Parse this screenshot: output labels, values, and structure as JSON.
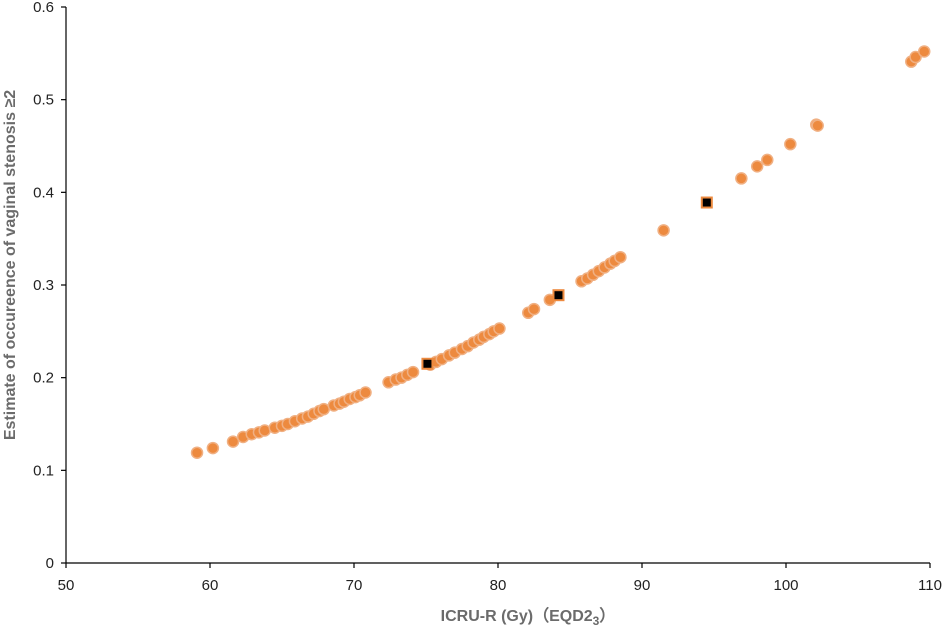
{
  "chart_data": {
    "type": "scatter",
    "xlabel": "ICRU-R (Gy)（EQD2",
    "xlabel_subscript": "3",
    "xlabel_suffix": "）",
    "ylabel": "Estimate of occureence of vaginal stenosis ≥2",
    "xlim": [
      50,
      110
    ],
    "ylim": [
      0,
      0.6
    ],
    "xticks": [
      50,
      60,
      70,
      80,
      90,
      100,
      110
    ],
    "yticks": [
      0,
      0.1,
      0.2,
      0.3,
      0.4,
      0.5,
      0.6
    ],
    "grid": false,
    "colors": {
      "circle": "#ed8a3f",
      "circle_edge": "#f0b083",
      "square": "#000000",
      "square_edge": "#ed8a3f"
    },
    "series": [
      {
        "marker": "circle",
        "points": [
          [
            59.1,
            0.119
          ],
          [
            60.2,
            0.124
          ],
          [
            61.6,
            0.131
          ],
          [
            62.3,
            0.136
          ],
          [
            62.9,
            0.139
          ],
          [
            63.4,
            0.141
          ],
          [
            63.8,
            0.143
          ],
          [
            64.5,
            0.146
          ],
          [
            65.0,
            0.148
          ],
          [
            65.4,
            0.15
          ],
          [
            65.9,
            0.153
          ],
          [
            66.4,
            0.156
          ],
          [
            66.8,
            0.158
          ],
          [
            67.2,
            0.161
          ],
          [
            67.6,
            0.164
          ],
          [
            67.9,
            0.166
          ],
          [
            68.6,
            0.17
          ],
          [
            69.0,
            0.172
          ],
          [
            69.3,
            0.174
          ],
          [
            69.7,
            0.177
          ],
          [
            70.1,
            0.179
          ],
          [
            70.4,
            0.181
          ],
          [
            70.8,
            0.184
          ],
          [
            72.4,
            0.195
          ],
          [
            72.9,
            0.198
          ],
          [
            73.3,
            0.2
          ],
          [
            73.7,
            0.203
          ],
          [
            74.1,
            0.206
          ],
          [
            75.3,
            0.214
          ],
          [
            75.7,
            0.217
          ],
          [
            76.1,
            0.22
          ],
          [
            76.6,
            0.224
          ],
          [
            77.0,
            0.227
          ],
          [
            77.5,
            0.231
          ],
          [
            77.9,
            0.234
          ],
          [
            78.3,
            0.238
          ],
          [
            78.7,
            0.241
          ],
          [
            79.0,
            0.244
          ],
          [
            79.4,
            0.247
          ],
          [
            79.7,
            0.25
          ],
          [
            80.1,
            0.253
          ],
          [
            82.1,
            0.27
          ],
          [
            82.5,
            0.274
          ],
          [
            83.6,
            0.284
          ],
          [
            85.8,
            0.304
          ],
          [
            86.2,
            0.307
          ],
          [
            86.6,
            0.311
          ],
          [
            87.0,
            0.315
          ],
          [
            87.4,
            0.319
          ],
          [
            87.8,
            0.323
          ],
          [
            88.1,
            0.326
          ],
          [
            88.5,
            0.33
          ],
          [
            91.5,
            0.359
          ],
          [
            96.9,
            0.415
          ],
          [
            98.0,
            0.428
          ],
          [
            98.7,
            0.435
          ],
          [
            100.3,
            0.452
          ],
          [
            102.1,
            0.473
          ],
          [
            102.2,
            0.472
          ],
          [
            108.7,
            0.541
          ],
          [
            109.0,
            0.546
          ],
          [
            109.6,
            0.552
          ]
        ]
      },
      {
        "marker": "square",
        "points": [
          [
            75.1,
            0.215
          ],
          [
            84.2,
            0.289
          ],
          [
            94.5,
            0.389
          ]
        ]
      }
    ]
  }
}
